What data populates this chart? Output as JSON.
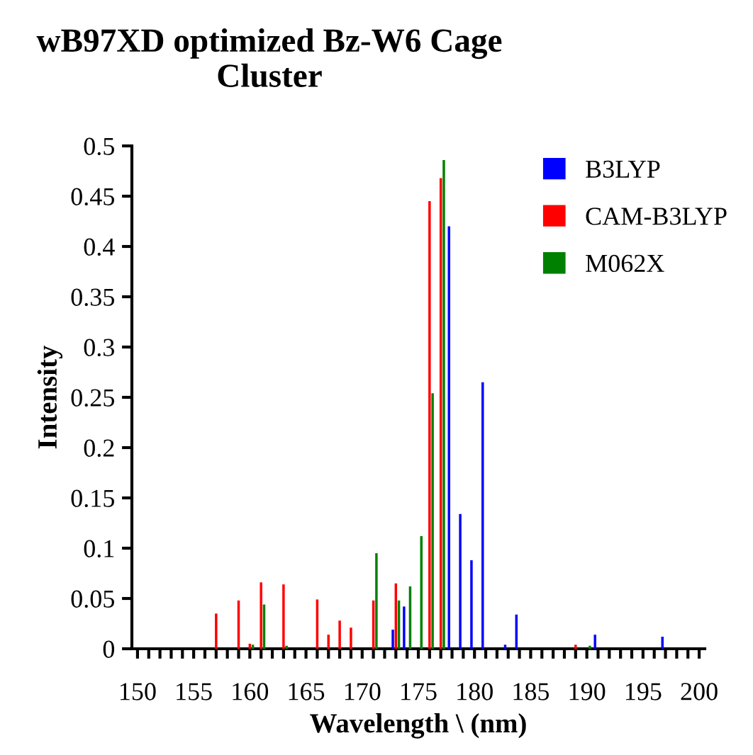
{
  "chart_data": {
    "type": "bar",
    "title": "wB97XD optimized Bz-W6 Cage Cluster",
    "xlabel": "Wavelength \\ (nm)",
    "ylabel": "Intensity",
    "series": [
      {
        "name": "B3LYP",
        "color": "#0000ff",
        "x": [
          173,
          174,
          178,
          179,
          180,
          181,
          183,
          184,
          191,
          197
        ],
        "values": [
          0.019,
          0.042,
          0.42,
          0.134,
          0.088,
          0.265,
          0.004,
          0.034,
          0.014,
          0.012
        ]
      },
      {
        "name": "CAM-B3LYP",
        "color": "#ff0000",
        "x": [
          157,
          159,
          160,
          161,
          163,
          166,
          167,
          168,
          169,
          171,
          173,
          176,
          177,
          189
        ],
        "values": [
          0.035,
          0.048,
          0.005,
          0.066,
          0.064,
          0.049,
          0.014,
          0.028,
          0.021,
          0.048,
          0.065,
          0.445,
          0.468,
          0.004
        ]
      },
      {
        "name": "M062X",
        "color": "#008000",
        "x": [
          160,
          161,
          163,
          171,
          173,
          174,
          175,
          176,
          177,
          190
        ],
        "values": [
          0.004,
          0.044,
          0.003,
          0.095,
          0.048,
          0.062,
          0.112,
          0.254,
          0.486,
          0.003
        ]
      }
    ],
    "xlim": [
      149.5,
      200.5
    ],
    "xticks": [
      150,
      {
        "value": 151,
        "label": null
      },
      {
        "value": 152,
        "label": null
      },
      {
        "value": 153,
        "label": null
      },
      {
        "value": 154,
        "label": null
      },
      155,
      {
        "value": 156,
        "label": null
      },
      {
        "value": 157,
        "label": null
      },
      {
        "value": 158,
        "label": null
      },
      {
        "value": 159,
        "label": null
      },
      160,
      {
        "value": 161,
        "label": null
      },
      {
        "value": 162,
        "label": null
      },
      {
        "value": 163,
        "label": null
      },
      {
        "value": 164,
        "label": null
      },
      165,
      {
        "value": 166,
        "label": null
      },
      {
        "value": 167,
        "label": null
      },
      {
        "value": 168,
        "label": null
      },
      {
        "value": 169,
        "label": null
      },
      170,
      {
        "value": 171,
        "label": null
      },
      {
        "value": 172,
        "label": null
      },
      {
        "value": 173,
        "label": null
      },
      {
        "value": 174,
        "label": null
      },
      175,
      {
        "value": 176,
        "label": null
      },
      {
        "value": 177,
        "label": null
      },
      {
        "value": 178,
        "label": null
      },
      {
        "value": 179,
        "label": null
      },
      180,
      {
        "value": 181,
        "label": null
      },
      {
        "value": 182,
        "label": null
      },
      {
        "value": 183,
        "label": null
      },
      {
        "value": 184,
        "label": null
      },
      185,
      {
        "value": 186,
        "label": null
      },
      {
        "value": 187,
        "label": null
      },
      {
        "value": 188,
        "label": null
      },
      {
        "value": 189,
        "label": null
      },
      190,
      {
        "value": 191,
        "label": null
      },
      {
        "value": 192,
        "label": null
      },
      {
        "value": 193,
        "label": null
      },
      {
        "value": 194,
        "label": null
      },
      195,
      {
        "value": 196,
        "label": null
      },
      {
        "value": 197,
        "label": null
      },
      {
        "value": 198,
        "label": null
      },
      {
        "value": 199,
        "label": null
      },
      200
    ],
    "ylim": [
      0,
      0.5
    ],
    "yticks": [
      0,
      0.05,
      0.1,
      0.15,
      0.2,
      0.25,
      0.3,
      0.35,
      0.4,
      0.45,
      0.5
    ],
    "grid": false,
    "legend": "top right"
  }
}
